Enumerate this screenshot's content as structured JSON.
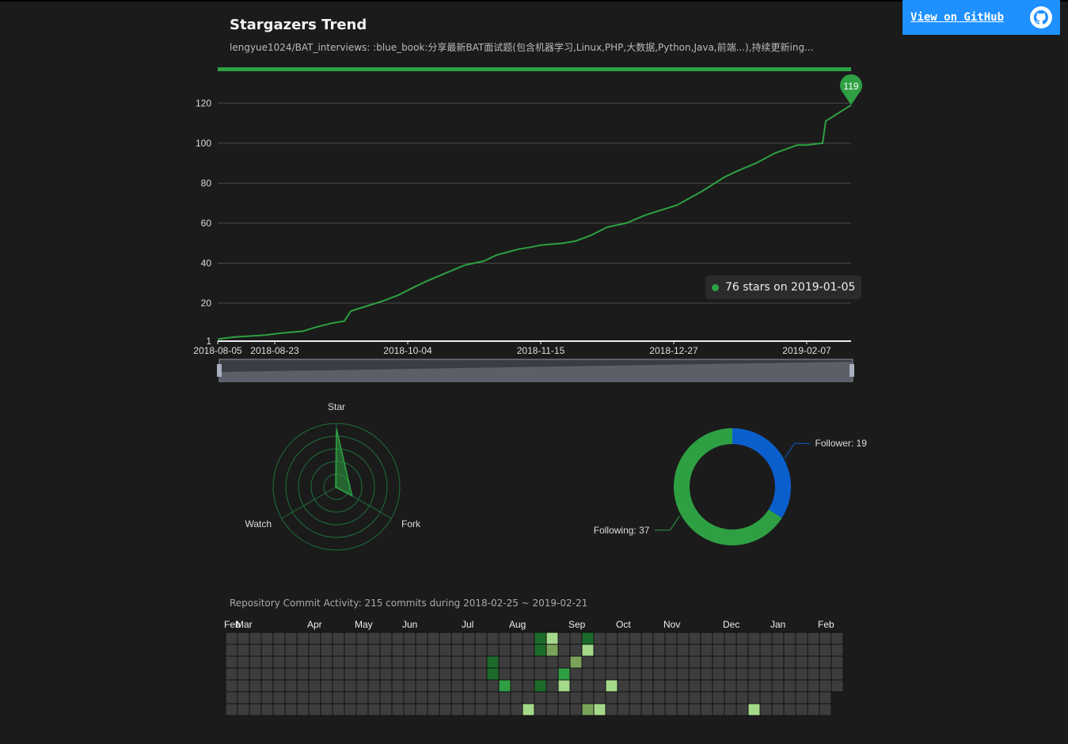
{
  "header": {
    "title": "Stargazers Trend",
    "subtitle": "lengyue1024/BAT_interviews: :blue_book:分享最新BAT面试题(包含机器学习,Linux,PHP,大数据,Python,Java,前端...),持续更新ing...",
    "github_button": "View on GitHub"
  },
  "colors": {
    "accent": "#2ea043",
    "blue": "#1e90ff",
    "follower": "#0a5fcc"
  },
  "chart_data": [
    {
      "type": "line",
      "title": "Stargazers Trend",
      "x_start": "2018-08-05",
      "x_end": "2019-02-21",
      "x_ticks": [
        "2018-08-05",
        "2018-08-23",
        "2018-10-04",
        "2018-11-15",
        "2018-12-27",
        "2019-02-07"
      ],
      "y_ticks": [
        1,
        20,
        40,
        60,
        80,
        100,
        120
      ],
      "ylim": [
        1,
        130
      ],
      "series": [
        {
          "name": "stars",
          "x": [
            "2018-08-05",
            "2018-08-10",
            "2018-08-20",
            "2018-08-25",
            "2018-09-01",
            "2018-09-05",
            "2018-09-10",
            "2018-09-14",
            "2018-09-16",
            "2018-09-22",
            "2018-09-26",
            "2018-10-01",
            "2018-10-06",
            "2018-10-10",
            "2018-10-16",
            "2018-10-22",
            "2018-10-28",
            "2018-11-01",
            "2018-11-08",
            "2018-11-12",
            "2018-11-15",
            "2018-11-22",
            "2018-11-26",
            "2018-12-01",
            "2018-12-06",
            "2018-12-12",
            "2018-12-18",
            "2018-12-24",
            "2018-12-28",
            "2019-01-05",
            "2019-01-08",
            "2019-01-12",
            "2019-01-16",
            "2019-01-22",
            "2019-01-28",
            "2019-02-04",
            "2019-02-07",
            "2019-02-12",
            "2019-02-13",
            "2019-02-16",
            "2019-02-21"
          ],
          "values": [
            2,
            3,
            4,
            5,
            6,
            8,
            10,
            11,
            16,
            19,
            21,
            24,
            28,
            31,
            35,
            39,
            41,
            44,
            47,
            48,
            49,
            50,
            51,
            54,
            58,
            60,
            64,
            67,
            69,
            76,
            79,
            83,
            86,
            90,
            95,
            99,
            99,
            100,
            111,
            114,
            119
          ]
        }
      ],
      "peak_label": "119",
      "tooltip": "76 stars on 2019-01-05"
    },
    {
      "type": "radar",
      "axes": [
        "Star",
        "Watch",
        "Fork"
      ],
      "values": [
        119,
        2,
        37
      ],
      "max": 130
    },
    {
      "type": "pie",
      "slices": [
        {
          "label": "Follower: 19",
          "value": 19,
          "color": "#0a5fcc"
        },
        {
          "label": "Following: 37",
          "value": 37,
          "color": "#2ea043"
        }
      ]
    },
    {
      "type": "heatmap",
      "title": "Repository Commit Activity: 215 commits during 2018-02-25 ~ 2019-02-21",
      "months": [
        {
          "label": "Feb",
          "week": 0
        },
        {
          "label": "Mar",
          "week": 1
        },
        {
          "label": "Apr",
          "week": 7
        },
        {
          "label": "May",
          "week": 11
        },
        {
          "label": "Jun",
          "week": 15
        },
        {
          "label": "Jul",
          "week": 20
        },
        {
          "label": "Aug",
          "week": 24
        },
        {
          "label": "Sep",
          "week": 29
        },
        {
          "label": "Oct",
          "week": 33
        },
        {
          "label": "Nov",
          "week": 37
        },
        {
          "label": "Dec",
          "week": 42
        },
        {
          "label": "Jan",
          "week": 46
        },
        {
          "label": "Feb",
          "week": 50
        }
      ],
      "weeks": 52,
      "cells": [
        {
          "week": 26,
          "day": 0,
          "level": 3
        },
        {
          "week": 27,
          "day": 0,
          "level": 1
        },
        {
          "week": 30,
          "day": 0,
          "level": 3
        },
        {
          "week": 26,
          "day": 1,
          "level": 3
        },
        {
          "week": 27,
          "day": 1,
          "level": 2
        },
        {
          "week": 30,
          "day": 1,
          "level": 1
        },
        {
          "week": 22,
          "day": 2,
          "level": 3
        },
        {
          "week": 29,
          "day": 2,
          "level": 2
        },
        {
          "week": 22,
          "day": 3,
          "level": 3
        },
        {
          "week": 28,
          "day": 3,
          "level": 4
        },
        {
          "week": 23,
          "day": 4,
          "level": 4
        },
        {
          "week": 26,
          "day": 4,
          "level": 3
        },
        {
          "week": 28,
          "day": 4,
          "level": 1
        },
        {
          "week": 32,
          "day": 4,
          "level": 1
        },
        {
          "week": 25,
          "day": 6,
          "level": 1
        },
        {
          "week": 30,
          "day": 6,
          "level": 2
        },
        {
          "week": 31,
          "day": 6,
          "level": 1
        },
        {
          "week": 44,
          "day": 6,
          "level": 1
        }
      ]
    }
  ]
}
